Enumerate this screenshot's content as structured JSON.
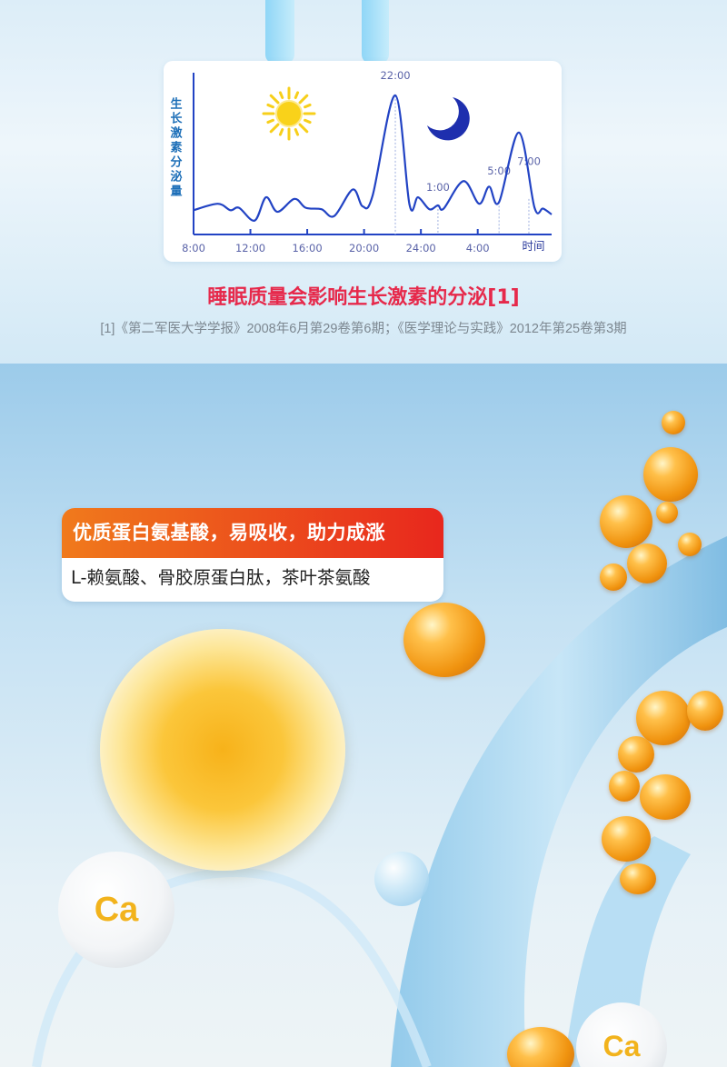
{
  "chart_data": {
    "type": "line",
    "ylabel": "生长激素分泌量",
    "xlabel": "时间",
    "x_tick_labels": [
      {
        "hour": 8,
        "label": "8:00"
      },
      {
        "hour": 12,
        "label": "12:00"
      },
      {
        "hour": 16,
        "label": "16:00"
      },
      {
        "hour": 20,
        "label": "20:00"
      },
      {
        "hour": 24,
        "label": "24:00"
      },
      {
        "hour": 28,
        "label": "4:00"
      }
    ],
    "xlim_hours": [
      8,
      33.2
    ],
    "ylim_relative": [
      0,
      100
    ],
    "series": [
      {
        "color": "#2243c4",
        "points": [
          [
            8.0,
            15
          ],
          [
            9.7,
            19
          ],
          [
            10.6,
            15
          ],
          [
            11.2,
            16.5
          ],
          [
            12.3,
            8.6
          ],
          [
            13.1,
            23
          ],
          [
            13.9,
            14
          ],
          [
            15.1,
            22
          ],
          [
            15.9,
            16.5
          ],
          [
            17.0,
            15.6
          ],
          [
            17.9,
            11.4
          ],
          [
            19.2,
            27.8
          ],
          [
            19.9,
            17.4
          ],
          [
            20.6,
            24
          ],
          [
            22.2,
            86
          ],
          [
            23.2,
            18.4
          ],
          [
            23.8,
            23
          ],
          [
            24.6,
            15.6
          ],
          [
            25.2,
            18
          ],
          [
            25.6,
            16
          ],
          [
            27.0,
            33
          ],
          [
            28.1,
            19
          ],
          [
            28.8,
            29.6
          ],
          [
            29.5,
            20
          ],
          [
            30.9,
            63
          ],
          [
            32.0,
            16.5
          ],
          [
            32.6,
            16
          ],
          [
            33.2,
            12.4
          ]
        ]
      }
    ],
    "annotations": [
      {
        "hour": 22.2,
        "level": 86,
        "label": "22:00",
        "label_level": 96
      },
      {
        "hour": 25.2,
        "level": 18,
        "label": "1:00",
        "label_level": 27
      },
      {
        "hour": 29.5,
        "level": 20,
        "label": "5:00",
        "label_level": 37
      },
      {
        "hour": 31.6,
        "level": 22,
        "label": "7:00",
        "label_level": 43
      }
    ],
    "icons": [
      "sun-icon",
      "moon-icon"
    ],
    "grid": false
  },
  "caption": "睡眠质量会影响生长激素的分泌[1]",
  "reference": "[1]《第二军医大学学报》2008年6月第29卷第6期；《医学理论与实践》2012年第25卷第3期",
  "banner": {
    "title": "优质蛋白氨基酸，易吸收，助力成涨",
    "subtitle": "L-赖氨酸、骨胶原蛋白肽，茶叶茶氨酸"
  },
  "calcium_balls": [
    "Ca",
    "Ca"
  ],
  "colors": {
    "caption": "#e6294b",
    "banner_start": "#f07a1c",
    "banner_end": "#e8271d",
    "chart_line": "#2243c4"
  }
}
